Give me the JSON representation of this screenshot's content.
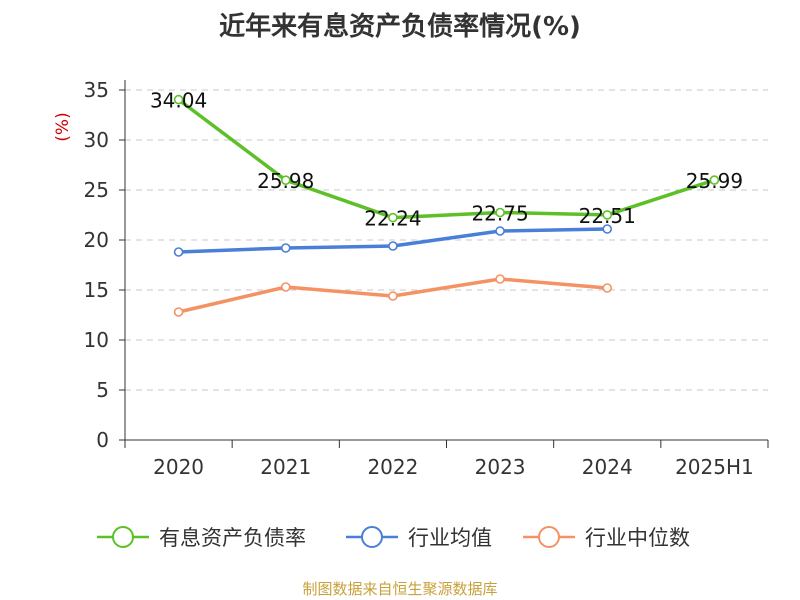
{
  "title": "近年来有息资产负债率情况(%)",
  "source": "制图数据来自恒生聚源数据库",
  "colors": {
    "series_1": "#5dc028",
    "series_2": "#4a7fd8",
    "series_3": "#f59264",
    "ylabel": "#cc0000",
    "grid": "#c8c8c8",
    "axis": "#333333"
  },
  "chart_data": {
    "type": "line",
    "ylabel": "(%)",
    "ylim": [
      0,
      35
    ],
    "yticks": [
      0,
      5,
      10,
      15,
      20,
      25,
      30,
      35
    ],
    "grid": "horizontal-dashed",
    "legend_position": "bottom",
    "categories": [
      "2020",
      "2021",
      "2022",
      "2023",
      "2024",
      "2025H1"
    ],
    "series": [
      {
        "name": "有息资产负债率",
        "values": [
          34.04,
          25.98,
          22.24,
          22.75,
          22.51,
          25.99
        ],
        "labels": [
          "34.04",
          "25.98",
          "22.24",
          "22.75",
          "22.51",
          "25.99"
        ]
      },
      {
        "name": "行业均值",
        "values": [
          18.8,
          19.2,
          19.4,
          20.9,
          21.1,
          null
        ]
      },
      {
        "name": "行业中位数",
        "values": [
          12.8,
          15.3,
          14.4,
          16.1,
          15.2,
          null
        ]
      }
    ]
  }
}
